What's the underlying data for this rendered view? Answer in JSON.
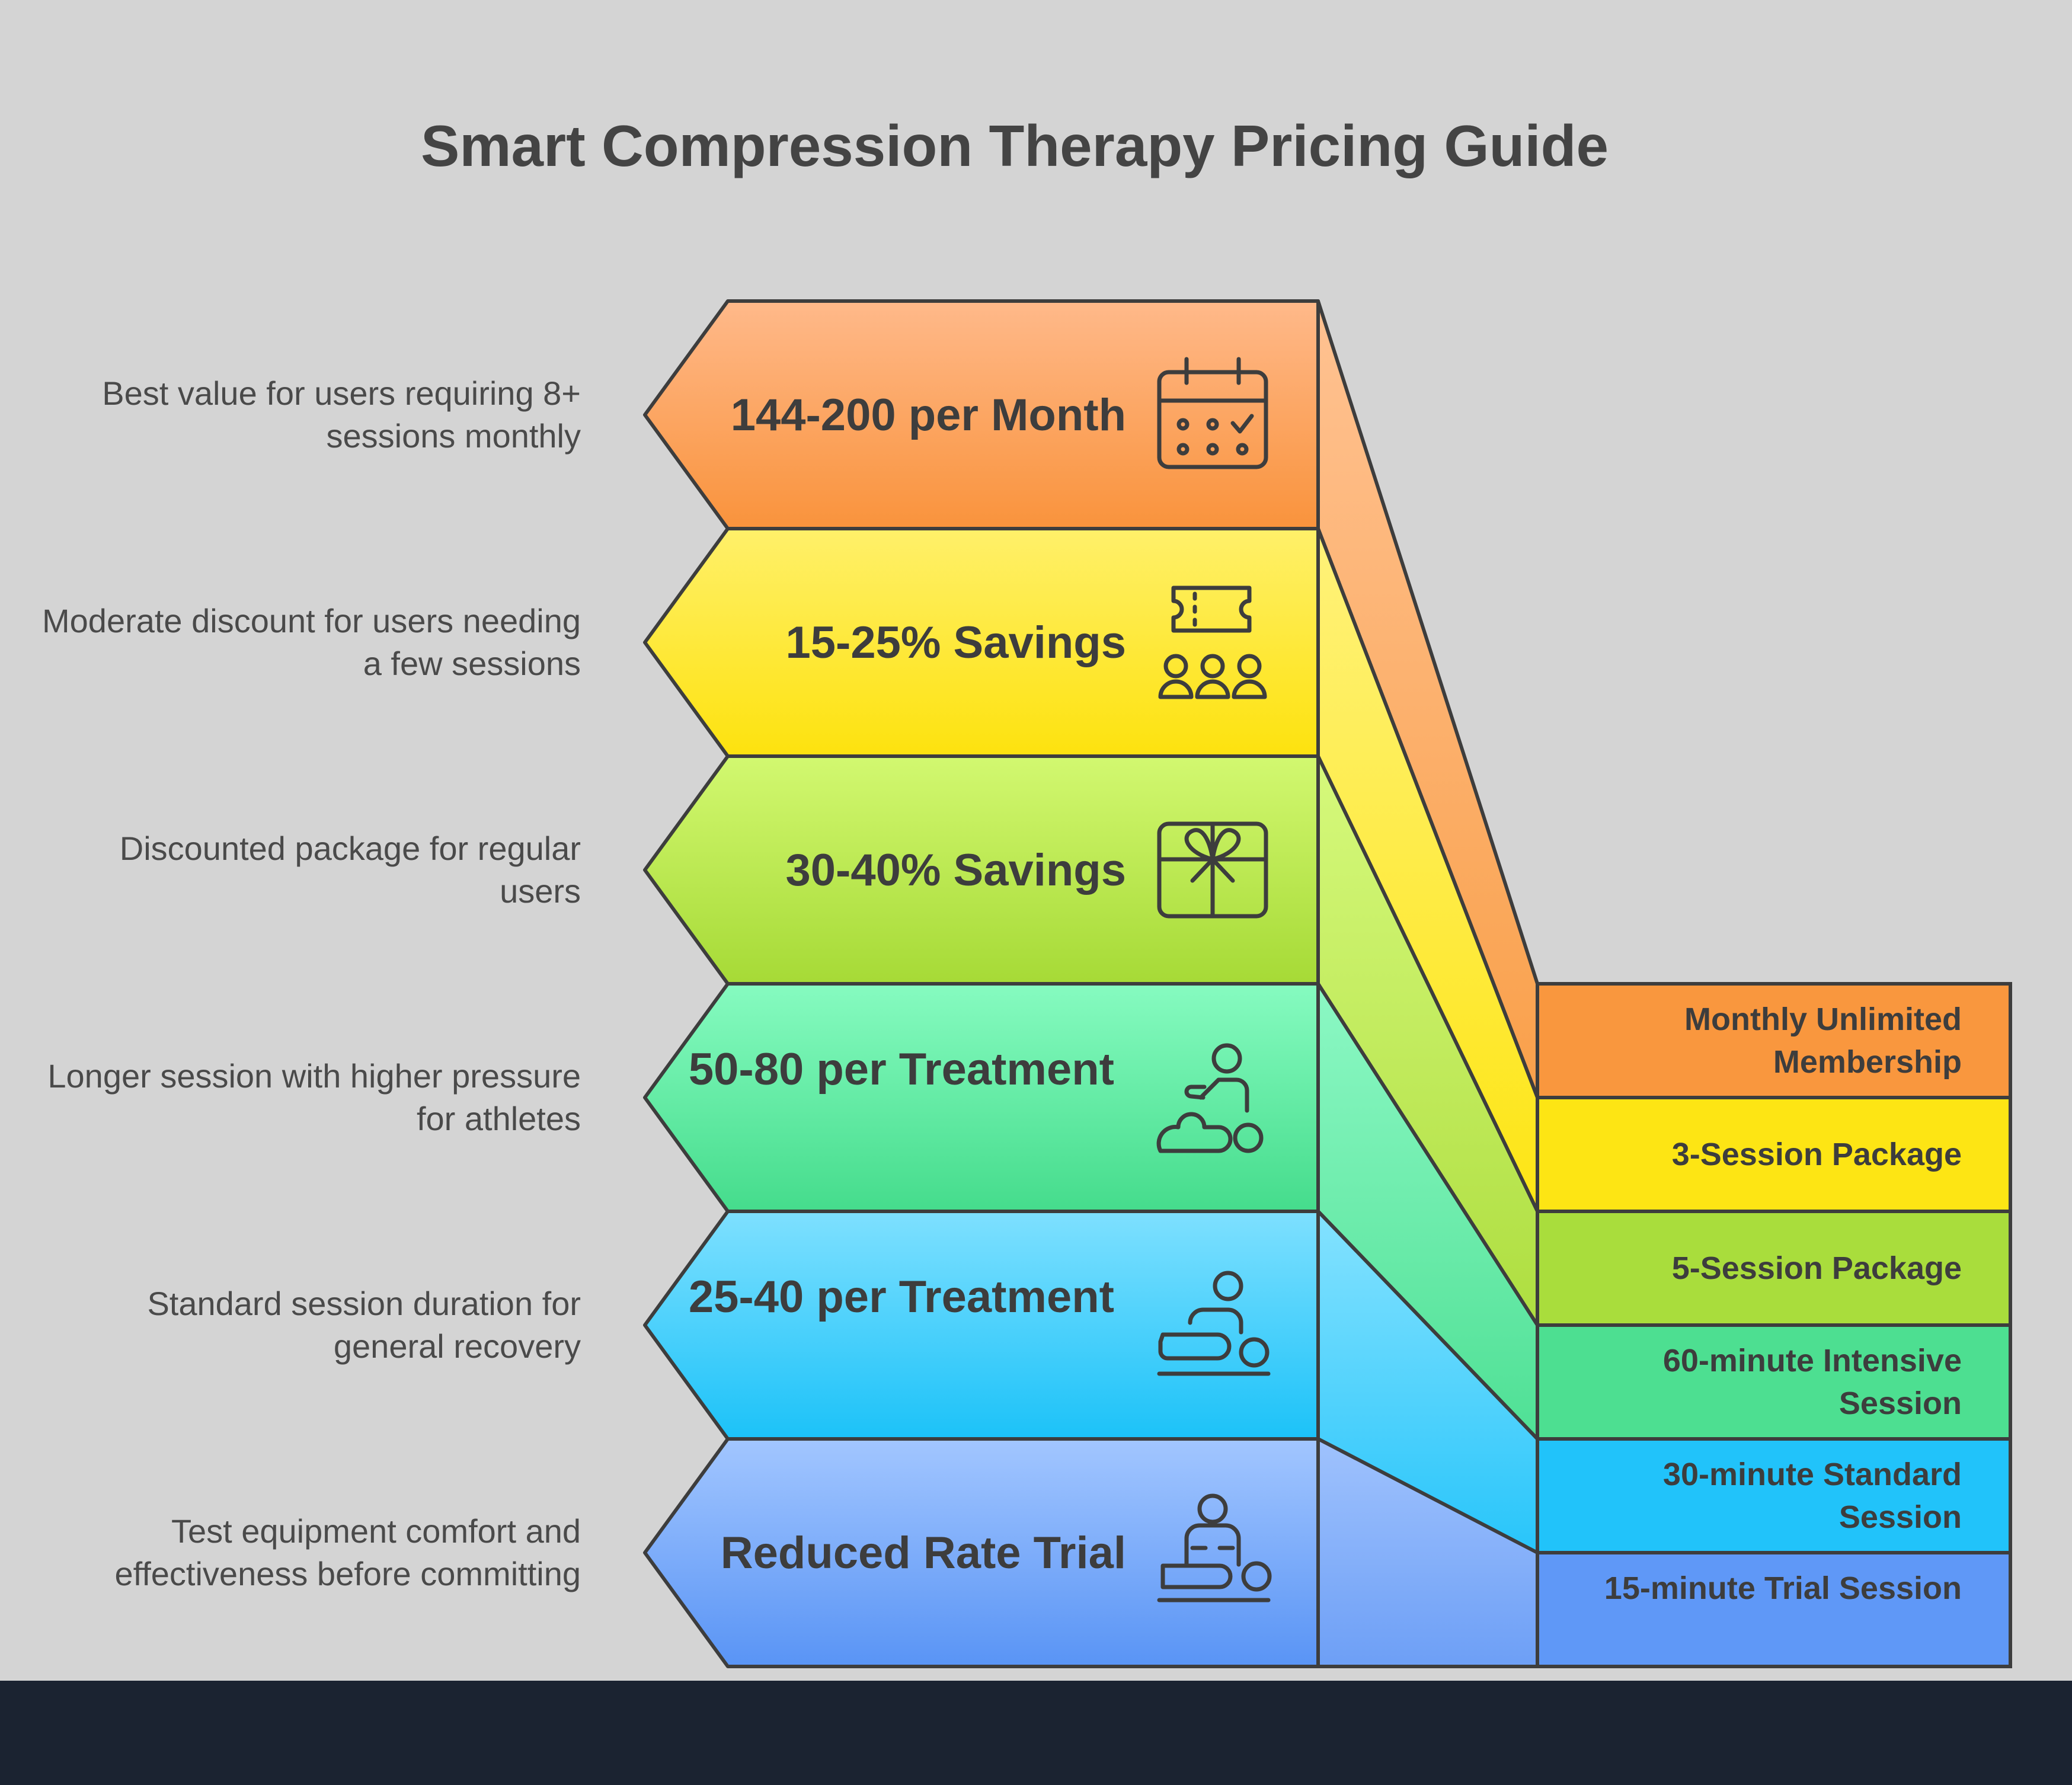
{
  "title": "Smart Compression Therapy Pricing Guide",
  "colors": {
    "background": "#d4d4d4",
    "outline": "#3d3d3d",
    "footer": "#1b2331",
    "tier_orange": "#f9973e",
    "tier_yellow": "#fde514",
    "tier_lime": "#a9dd3c",
    "tier_green": "#4ddf91",
    "tier_cyan": "#21c3fa",
    "tier_blue": "#5f98f7"
  },
  "tiers": [
    {
      "price": "144-200 per Month",
      "description": "Best value for users requiring 8+ sessions monthly",
      "option": "Monthly Unlimited Membership",
      "icon": "calendar-check-icon"
    },
    {
      "price": "15-25% Savings",
      "description": "Moderate discount for users needing a few sessions",
      "option": "3-Session Package",
      "icon": "ticket-group-icon"
    },
    {
      "price": "30-40% Savings",
      "description": "Discounted package for regular users",
      "option": "5-Session Package",
      "icon": "gift-box-icon"
    },
    {
      "price": "50-80 per Treatment",
      "description": "Longer session with higher pressure for athletes",
      "option": "60-minute Intensive Session",
      "icon": "massage-therapist-icon"
    },
    {
      "price": "25-40 per Treatment",
      "description": "Standard session duration for general recovery",
      "option": "30-minute Standard Session",
      "icon": "massage-table-icon"
    },
    {
      "price": "Reduced Rate Trial",
      "description": "Test equipment comfort and effectiveness before committing",
      "option": "15-minute Trial Session",
      "icon": "massage-trial-icon"
    }
  ]
}
